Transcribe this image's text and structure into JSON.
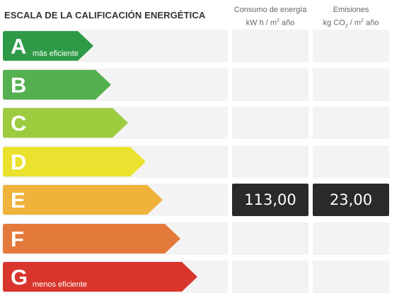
{
  "header": {
    "title": "ESCALA DE LA CALIFICACIÓN ENERGÉTICA",
    "consumo_line1": "Consumo de energía",
    "consumo_line2_pre": "kW h  / m",
    "consumo_line2_sup": "2",
    "consumo_line2_post": " año",
    "emisiones_line1": "Emisiones",
    "emisiones_line2_pre": "kg CO",
    "emisiones_line2_sub": "2",
    "emisiones_line2_mid": "  / m",
    "emisiones_line2_sup": "2",
    "emisiones_line2_post": " año"
  },
  "ratings": [
    {
      "letter": "A",
      "description": "más eficiente",
      "color": "#2e9a48",
      "consumo": "",
      "emisiones": ""
    },
    {
      "letter": "B",
      "description": "",
      "color": "#55b04f",
      "consumo": "",
      "emisiones": ""
    },
    {
      "letter": "C",
      "description": "",
      "color": "#9ccb3e",
      "consumo": "",
      "emisiones": ""
    },
    {
      "letter": "D",
      "description": "",
      "color": "#eae22e",
      "consumo": "",
      "emisiones": ""
    },
    {
      "letter": "E",
      "description": "",
      "color": "#efb23b",
      "consumo": "113,00",
      "emisiones": "23,00"
    },
    {
      "letter": "F",
      "description": "",
      "color": "#e3793a",
      "consumo": "",
      "emisiones": ""
    },
    {
      "letter": "G",
      "description": "menos eficiente",
      "color": "#d8352c",
      "consumo": "",
      "emisiones": ""
    }
  ]
}
